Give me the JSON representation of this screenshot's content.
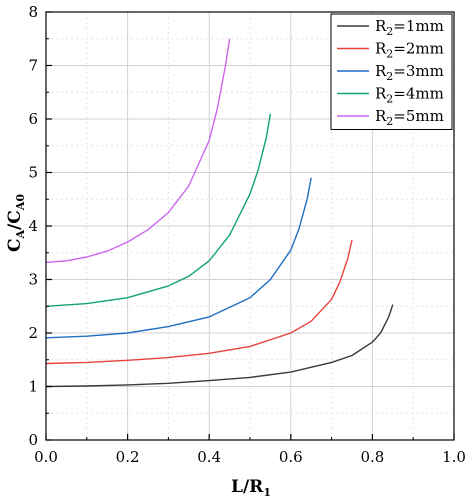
{
  "chart_data": {
    "type": "line",
    "xlabel": {
      "main": "L/R",
      "sub": "1"
    },
    "ylabel": {
      "main": "C",
      "sub1": "A",
      "mid": "/C",
      "sub2": "A0"
    },
    "xlim": [
      0,
      1
    ],
    "ylim": [
      0,
      8
    ],
    "xticks": [
      0,
      0.2,
      0.4,
      0.6,
      0.8,
      1.0
    ],
    "xtick_labels": [
      "0.0",
      "0.2",
      "0.4",
      "0.6",
      "0.8",
      "1.0"
    ],
    "yticks": [
      0,
      1,
      2,
      3,
      4,
      5,
      6,
      7,
      8
    ],
    "ytick_labels": [
      "0",
      "1",
      "2",
      "3",
      "4",
      "5",
      "6",
      "7",
      "8"
    ],
    "grid": {
      "major": true,
      "minor": true
    },
    "legend_position": "top-right",
    "series": [
      {
        "name": "R2=1mm",
        "legend": {
          "base": "R",
          "sub": "2",
          "rest": "=1mm"
        },
        "color": "#3a3a3a",
        "x": [
          0.0,
          0.1,
          0.2,
          0.3,
          0.4,
          0.5,
          0.6,
          0.7,
          0.75,
          0.8,
          0.82,
          0.84,
          0.85
        ],
        "y": [
          1.0,
          1.01,
          1.03,
          1.06,
          1.11,
          1.17,
          1.27,
          1.45,
          1.58,
          1.83,
          2.0,
          2.3,
          2.53
        ]
      },
      {
        "name": "R2=2mm",
        "legend": {
          "base": "R",
          "sub": "2",
          "rest": "=2mm"
        },
        "color": "#e8433a",
        "x": [
          0.0,
          0.1,
          0.2,
          0.3,
          0.4,
          0.5,
          0.6,
          0.65,
          0.7,
          0.72,
          0.74,
          0.75
        ],
        "y": [
          1.43,
          1.45,
          1.49,
          1.54,
          1.62,
          1.75,
          2.0,
          2.22,
          2.63,
          2.95,
          3.4,
          3.74
        ]
      },
      {
        "name": "R2=3mm",
        "legend": {
          "base": "R",
          "sub": "2",
          "rest": "=3mm"
        },
        "color": "#1f6fc2",
        "x": [
          0.0,
          0.1,
          0.2,
          0.3,
          0.4,
          0.5,
          0.55,
          0.6,
          0.62,
          0.64,
          0.65
        ],
        "y": [
          1.91,
          1.94,
          2.0,
          2.12,
          2.3,
          2.66,
          3.0,
          3.55,
          3.95,
          4.5,
          4.9
        ]
      },
      {
        "name": "R2=4mm",
        "legend": {
          "base": "R",
          "sub": "2",
          "rest": "=4mm"
        },
        "color": "#12a36e",
        "x": [
          0.0,
          0.1,
          0.2,
          0.3,
          0.35,
          0.4,
          0.45,
          0.5,
          0.52,
          0.54,
          0.55
        ],
        "y": [
          2.5,
          2.55,
          2.66,
          2.88,
          3.06,
          3.35,
          3.83,
          4.6,
          5.05,
          5.65,
          6.1
        ]
      },
      {
        "name": "R2=5mm",
        "legend": {
          "base": "R",
          "sub": "2",
          "rest": "=5mm"
        },
        "color": "#cc66ee",
        "x": [
          0.0,
          0.05,
          0.1,
          0.15,
          0.2,
          0.25,
          0.3,
          0.35,
          0.4,
          0.42,
          0.44,
          0.45
        ],
        "y": [
          3.32,
          3.35,
          3.42,
          3.53,
          3.7,
          3.93,
          4.25,
          4.75,
          5.6,
          6.2,
          7.0,
          7.5
        ]
      }
    ]
  }
}
